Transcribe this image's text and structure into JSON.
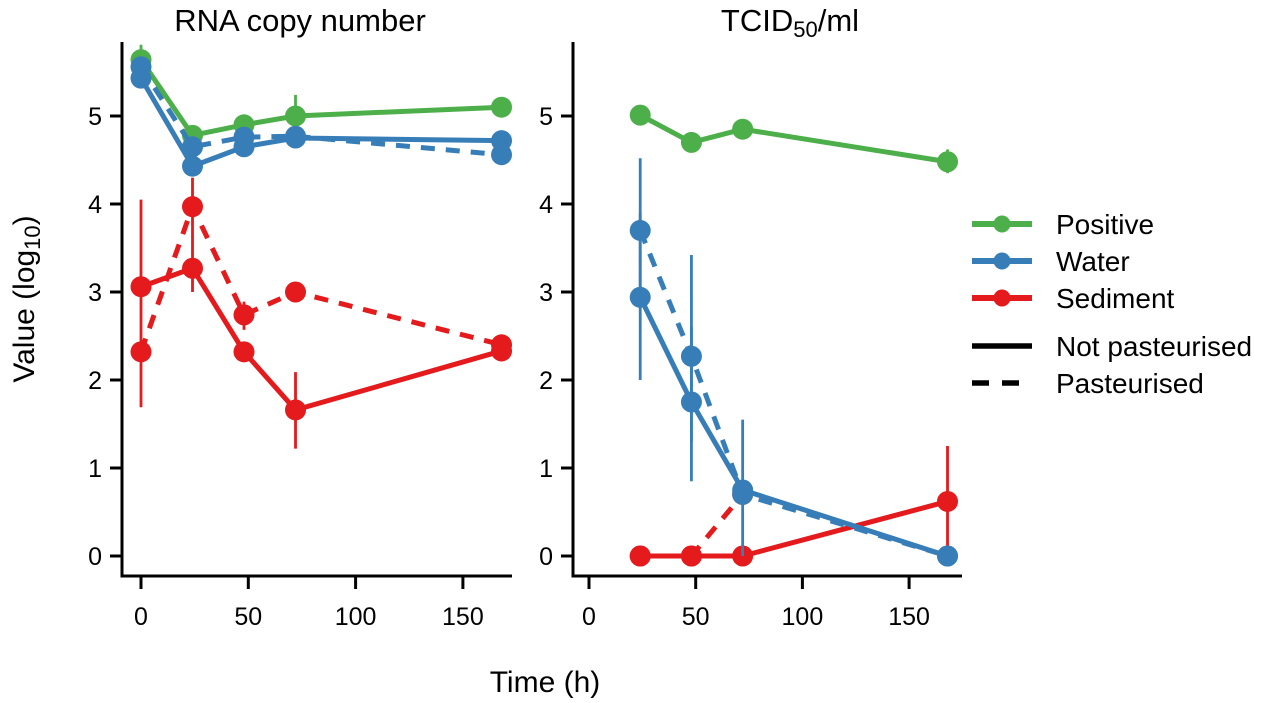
{
  "figure": {
    "x_axis_label": "Time (h)",
    "y_axis_label_parts": [
      {
        "t": "Value (log"
      },
      {
        "t": "10",
        "sub": true
      },
      {
        "t": ")"
      }
    ],
    "colors": {
      "positive": "#4daf4a",
      "water": "#377eb8",
      "sediment": "#e41a1c",
      "axis": "#000000"
    },
    "legend": {
      "series_entries": [
        {
          "label": "Positive",
          "color": "#4daf4a"
        },
        {
          "label": "Water",
          "color": "#377eb8"
        },
        {
          "label": "Sediment",
          "color": "#e41a1c"
        }
      ],
      "style_entries": [
        {
          "label": "Not pasteurised",
          "style": "solid"
        },
        {
          "label": "Pasteurised",
          "style": "dashed"
        }
      ]
    }
  },
  "chart_data": [
    {
      "type": "line",
      "title_parts": [
        {
          "t": "RNA copy number"
        }
      ],
      "xlabel": "Time (h)",
      "ylabel": "Value (log10)",
      "x": [
        0,
        24,
        48,
        72,
        168
      ],
      "xticks": [
        0,
        50,
        100,
        150
      ],
      "xtick_labels": [
        "0",
        "50",
        "100",
        "150"
      ],
      "yticks": [
        0,
        1,
        2,
        3,
        4,
        5
      ],
      "ytick_labels": [
        "0",
        "1",
        "2",
        "3",
        "4",
        "5"
      ],
      "xlim": [
        -9,
        173
      ],
      "ylim": [
        -0.23,
        5.84
      ],
      "grid": false,
      "series": [
        {
          "name": "Positive",
          "pasteurised": false,
          "style": "solid",
          "color": "#4daf4a",
          "values": [
            5.64,
            4.78,
            4.9,
            5.0,
            5.1
          ],
          "errors": [
            [
              5.45,
              5.81
            ],
            null,
            [
              4.78,
              5.0
            ],
            [
              4.8,
              5.24
            ],
            null
          ]
        },
        {
          "name": "Sediment (pasteurised)",
          "pasteurised": true,
          "style": "dashed",
          "color": "#e41a1c",
          "values": [
            2.32,
            3.97,
            2.74,
            3.0,
            2.4
          ],
          "errors": [
            null,
            [
              3.0,
              4.3
            ],
            [
              2.57,
              2.89
            ],
            null,
            null
          ]
        },
        {
          "name": "Sediment",
          "pasteurised": false,
          "style": "solid",
          "color": "#e41a1c",
          "values": [
            3.06,
            3.27,
            2.32,
            1.66,
            2.33
          ],
          "errors": [
            [
              1.69,
              4.05
            ],
            null,
            null,
            [
              1.22,
              2.09
            ],
            null
          ]
        },
        {
          "name": "Water (pasteurised)",
          "pasteurised": true,
          "style": "dashed",
          "color": "#377eb8",
          "values": [
            5.56,
            4.65,
            4.76,
            4.77,
            4.56
          ],
          "errors": [
            null,
            null,
            null,
            null,
            null
          ]
        },
        {
          "name": "Water",
          "pasteurised": false,
          "style": "solid",
          "color": "#377eb8",
          "values": [
            5.43,
            4.43,
            4.65,
            4.75,
            4.72
          ],
          "errors": [
            null,
            null,
            null,
            null,
            null
          ]
        }
      ]
    },
    {
      "type": "line",
      "title_parts": [
        {
          "t": "TCID"
        },
        {
          "t": "50",
          "sub": true
        },
        {
          "t": "/ml"
        }
      ],
      "xlabel": "Time (h)",
      "ylabel": "Value (log10)",
      "x": [
        24,
        48,
        72,
        168
      ],
      "xticks": [
        0,
        50,
        100,
        150
      ],
      "xtick_labels": [
        "0",
        "50",
        "100",
        "150"
      ],
      "yticks": [
        0,
        1,
        2,
        3,
        4,
        5
      ],
      "ytick_labels": [
        "0",
        "1",
        "2",
        "3",
        "4",
        "5"
      ],
      "xlim": [
        -8,
        175
      ],
      "ylim": [
        -0.23,
        5.84
      ],
      "grid": false,
      "series": [
        {
          "name": "Positive",
          "pasteurised": false,
          "style": "solid",
          "color": "#4daf4a",
          "values": [
            5.01,
            4.7,
            4.85,
            4.48
          ],
          "errors": [
            null,
            null,
            null,
            [
              4.35,
              4.62
            ]
          ]
        },
        {
          "name": "Sediment (pasteurised)",
          "pasteurised": true,
          "style": "dashed",
          "color": "#e41a1c",
          "values": [
            0.0,
            0.0,
            0.7,
            null
          ],
          "errors": [
            null,
            null,
            null,
            null
          ]
        },
        {
          "name": "Sediment",
          "pasteurised": false,
          "style": "solid",
          "color": "#e41a1c",
          "values": [
            0.0,
            0.0,
            0.0,
            0.62
          ],
          "errors": [
            null,
            null,
            null,
            [
              0.0,
              1.25
            ]
          ]
        },
        {
          "name": "Water (pasteurised)",
          "pasteurised": true,
          "style": "dashed",
          "color": "#377eb8",
          "values": [
            3.7,
            2.27,
            0.7,
            0.0
          ],
          "errors": [
            [
              2.9,
              4.52
            ],
            [
              1.3,
              3.42
            ],
            null,
            null
          ]
        },
        {
          "name": "Water",
          "pasteurised": false,
          "style": "solid",
          "color": "#377eb8",
          "values": [
            2.94,
            1.75,
            0.75,
            0.0
          ],
          "errors": [
            [
              2.0,
              3.9
            ],
            [
              0.85,
              2.6
            ],
            [
              0.0,
              1.55
            ],
            null
          ]
        }
      ]
    }
  ]
}
